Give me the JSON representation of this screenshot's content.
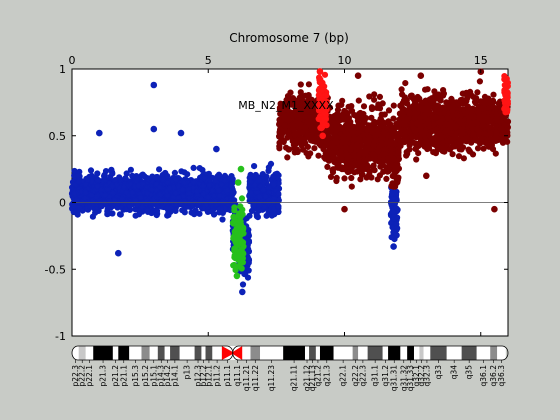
{
  "chart_data": {
    "type": "scatter",
    "title": "Chromosome 7 (bp)",
    "xlabel": "",
    "ylabel": "",
    "x_axis_position": "top",
    "xlim": [
      0,
      16
    ],
    "ylim": [
      -1,
      1
    ],
    "xticks": [
      0,
      5,
      10,
      15
    ],
    "yticks": [
      -1,
      -0.5,
      0,
      0.5,
      1
    ],
    "grid": false,
    "annotation": {
      "text": "MB_N2_M1_XXXX",
      "x": 6.1,
      "y": 0.7
    },
    "series": [
      {
        "color": "#0d22b8",
        "segments": [
          {
            "x_range": [
              0.0,
              5.9
            ],
            "y_mean": 0.07,
            "y_spread": 0.13
          },
          {
            "x_range": [
              5.9,
              6.1
            ],
            "y_mean": -0.18,
            "y_spread": 0.2
          },
          {
            "x_range": [
              6.1,
              6.5
            ],
            "y_mean": -0.35,
            "y_spread": 0.22
          },
          {
            "x_range": [
              6.5,
              7.6
            ],
            "y_mean": 0.08,
            "y_spread": 0.15
          },
          {
            "x_range": [
              11.7,
              11.95
            ],
            "y_mean": -0.08,
            "y_spread": 0.2
          }
        ],
        "outliers": [
          {
            "x": 3.0,
            "y": 0.88
          },
          {
            "x": 3.0,
            "y": 0.55
          },
          {
            "x": 1.0,
            "y": 0.52
          },
          {
            "x": 4.0,
            "y": 0.52
          },
          {
            "x": 1.7,
            "y": -0.38
          },
          {
            "x": 6.25,
            "y": -0.67
          },
          {
            "x": 11.8,
            "y": -0.33
          },
          {
            "x": 5.3,
            "y": 0.4
          }
        ]
      },
      {
        "color": "#27c01c",
        "segments": [
          {
            "x_range": [
              5.9,
              6.3
            ],
            "y_mean": -0.28,
            "y_spread": 0.25
          }
        ],
        "outliers": [
          {
            "x": 6.05,
            "y": -0.55
          },
          {
            "x": 6.1,
            "y": 0.15
          },
          {
            "x": 6.2,
            "y": 0.25
          },
          {
            "x": 6.0,
            "y": -0.48
          }
        ]
      },
      {
        "color": "#7a0000",
        "segments": [
          {
            "x_range": [
              7.6,
              9.2
            ],
            "y_mean": 0.6,
            "y_spread": 0.2
          },
          {
            "x_range": [
              9.2,
              9.5
            ],
            "y_mean": 0.55,
            "y_spread": 0.25
          },
          {
            "x_range": [
              9.5,
              11.7
            ],
            "y_mean": 0.45,
            "y_spread": 0.25
          },
          {
            "x_range": [
              11.7,
              12.0
            ],
            "y_mean": 0.35,
            "y_spread": 0.25
          },
          {
            "x_range": [
              12.0,
              16.0
            ],
            "y_mean": 0.6,
            "y_spread": 0.2
          }
        ],
        "outliers": [
          {
            "x": 10.5,
            "y": 0.95
          },
          {
            "x": 12.8,
            "y": 0.95
          },
          {
            "x": 15.0,
            "y": 0.98
          },
          {
            "x": 15.5,
            "y": -0.05
          },
          {
            "x": 10.0,
            "y": -0.05
          },
          {
            "x": 13.0,
            "y": 0.2
          }
        ]
      },
      {
        "color": "#ff1414",
        "segments": [
          {
            "x_range": [
              9.05,
              9.35
            ],
            "y_mean": 0.75,
            "y_spread": 0.2
          },
          {
            "x_range": [
              15.85,
              16.0
            ],
            "y_mean": 0.8,
            "y_spread": 0.15
          }
        ],
        "outliers": [
          {
            "x": 9.2,
            "y": 0.5
          },
          {
            "x": 9.1,
            "y": 0.98
          }
        ]
      }
    ],
    "ideogram": {
      "centromere_x": 5.9,
      "bands": [
        {
          "label": "p22.3",
          "x0": 0.0,
          "x1": 0.25,
          "stain": "gneg"
        },
        {
          "label": "p22.2",
          "x0": 0.25,
          "x1": 0.5,
          "stain": "gpos25"
        },
        {
          "label": "p22.1",
          "x0": 0.5,
          "x1": 0.78,
          "stain": "gneg"
        },
        {
          "label": "p21.3",
          "x0": 0.78,
          "x1": 1.5,
          "stain": "gpos100"
        },
        {
          "label": "p21.2",
          "x0": 1.5,
          "x1": 1.7,
          "stain": "gneg"
        },
        {
          "label": "p21.1",
          "x0": 1.7,
          "x1": 2.1,
          "stain": "gpos100"
        },
        {
          "label": "p15.3",
          "x0": 2.1,
          "x1": 2.55,
          "stain": "gneg"
        },
        {
          "label": "p15.2",
          "x0": 2.55,
          "x1": 2.85,
          "stain": "gpos50"
        },
        {
          "label": "p15.1",
          "x0": 2.85,
          "x1": 3.15,
          "stain": "gneg"
        },
        {
          "label": "p14.3",
          "x0": 3.15,
          "x1": 3.4,
          "stain": "gpos75"
        },
        {
          "label": "p14.2",
          "x0": 3.4,
          "x1": 3.6,
          "stain": "gneg"
        },
        {
          "label": "p14.1",
          "x0": 3.6,
          "x1": 3.95,
          "stain": "gpos75"
        },
        {
          "label": "p13",
          "x0": 3.95,
          "x1": 4.5,
          "stain": "gneg"
        },
        {
          "label": "p12.3",
          "x0": 4.5,
          "x1": 4.75,
          "stain": "gpos75"
        },
        {
          "label": "p12.2",
          "x0": 4.75,
          "x1": 4.9,
          "stain": "gneg"
        },
        {
          "label": "p12.1",
          "x0": 4.9,
          "x1": 5.15,
          "stain": "gpos75"
        },
        {
          "label": "p11.2",
          "x0": 5.15,
          "x1": 5.5,
          "stain": "gneg"
        },
        {
          "label": "p11.1",
          "x0": 5.5,
          "x1": 5.9,
          "stain": "acen"
        },
        {
          "label": "q11.1",
          "x0": 5.9,
          "x1": 6.25,
          "stain": "acen"
        },
        {
          "label": "q11.21",
          "x0": 6.25,
          "x1": 6.55,
          "stain": "gneg"
        },
        {
          "label": "q11.22",
          "x0": 6.55,
          "x1": 6.9,
          "stain": "gpos50"
        },
        {
          "label": "q11.23",
          "x0": 6.9,
          "x1": 7.75,
          "stain": "gneg"
        },
        {
          "label": "q21.11",
          "x0": 7.75,
          "x1": 8.55,
          "stain": "gpos100"
        },
        {
          "label": "q21.12",
          "x0": 8.55,
          "x1": 8.7,
          "stain": "gneg"
        },
        {
          "label": "q21.13",
          "x0": 8.7,
          "x1": 8.95,
          "stain": "gpos75"
        },
        {
          "label": "q21.2",
          "x0": 8.95,
          "x1": 9.1,
          "stain": "gneg"
        },
        {
          "label": "q21.3",
          "x0": 9.1,
          "x1": 9.6,
          "stain": "gpos100"
        },
        {
          "label": "q22.1",
          "x0": 9.6,
          "x1": 10.3,
          "stain": "gneg"
        },
        {
          "label": "q22.2",
          "x0": 10.3,
          "x1": 10.5,
          "stain": "gpos50"
        },
        {
          "label": "q22.3",
          "x0": 10.5,
          "x1": 10.85,
          "stain": "gneg"
        },
        {
          "label": "q31.1",
          "x0": 10.85,
          "x1": 11.4,
          "stain": "gpos75"
        },
        {
          "label": "q31.2",
          "x0": 11.4,
          "x1": 11.6,
          "stain": "gneg"
        },
        {
          "label": "q31.31",
          "x0": 11.6,
          "x1": 12.05,
          "stain": "gpos100"
        },
        {
          "label": "q31.32",
          "x0": 12.05,
          "x1": 12.3,
          "stain": "gneg"
        },
        {
          "label": "q31.33",
          "x0": 12.3,
          "x1": 12.55,
          "stain": "gpos100"
        },
        {
          "label": "q32.1",
          "x0": 12.55,
          "x1": 12.75,
          "stain": "gneg"
        },
        {
          "label": "q32.2",
          "x0": 12.75,
          "x1": 12.9,
          "stain": "gpos25"
        },
        {
          "label": "q32.3",
          "x0": 12.9,
          "x1": 13.15,
          "stain": "gneg"
        },
        {
          "label": "q33",
          "x0": 13.15,
          "x1": 13.75,
          "stain": "gpos75"
        },
        {
          "label": "q34",
          "x0": 13.75,
          "x1": 14.3,
          "stain": "gneg"
        },
        {
          "label": "q35",
          "x0": 14.3,
          "x1": 14.85,
          "stain": "gpos75"
        },
        {
          "label": "q36.1",
          "x0": 14.85,
          "x1": 15.35,
          "stain": "gneg"
        },
        {
          "label": "q36.2",
          "x0": 15.35,
          "x1": 15.6,
          "stain": "gpos50"
        },
        {
          "label": "q36.3",
          "x0": 15.6,
          "x1": 15.92,
          "stain": "gneg"
        }
      ]
    }
  }
}
